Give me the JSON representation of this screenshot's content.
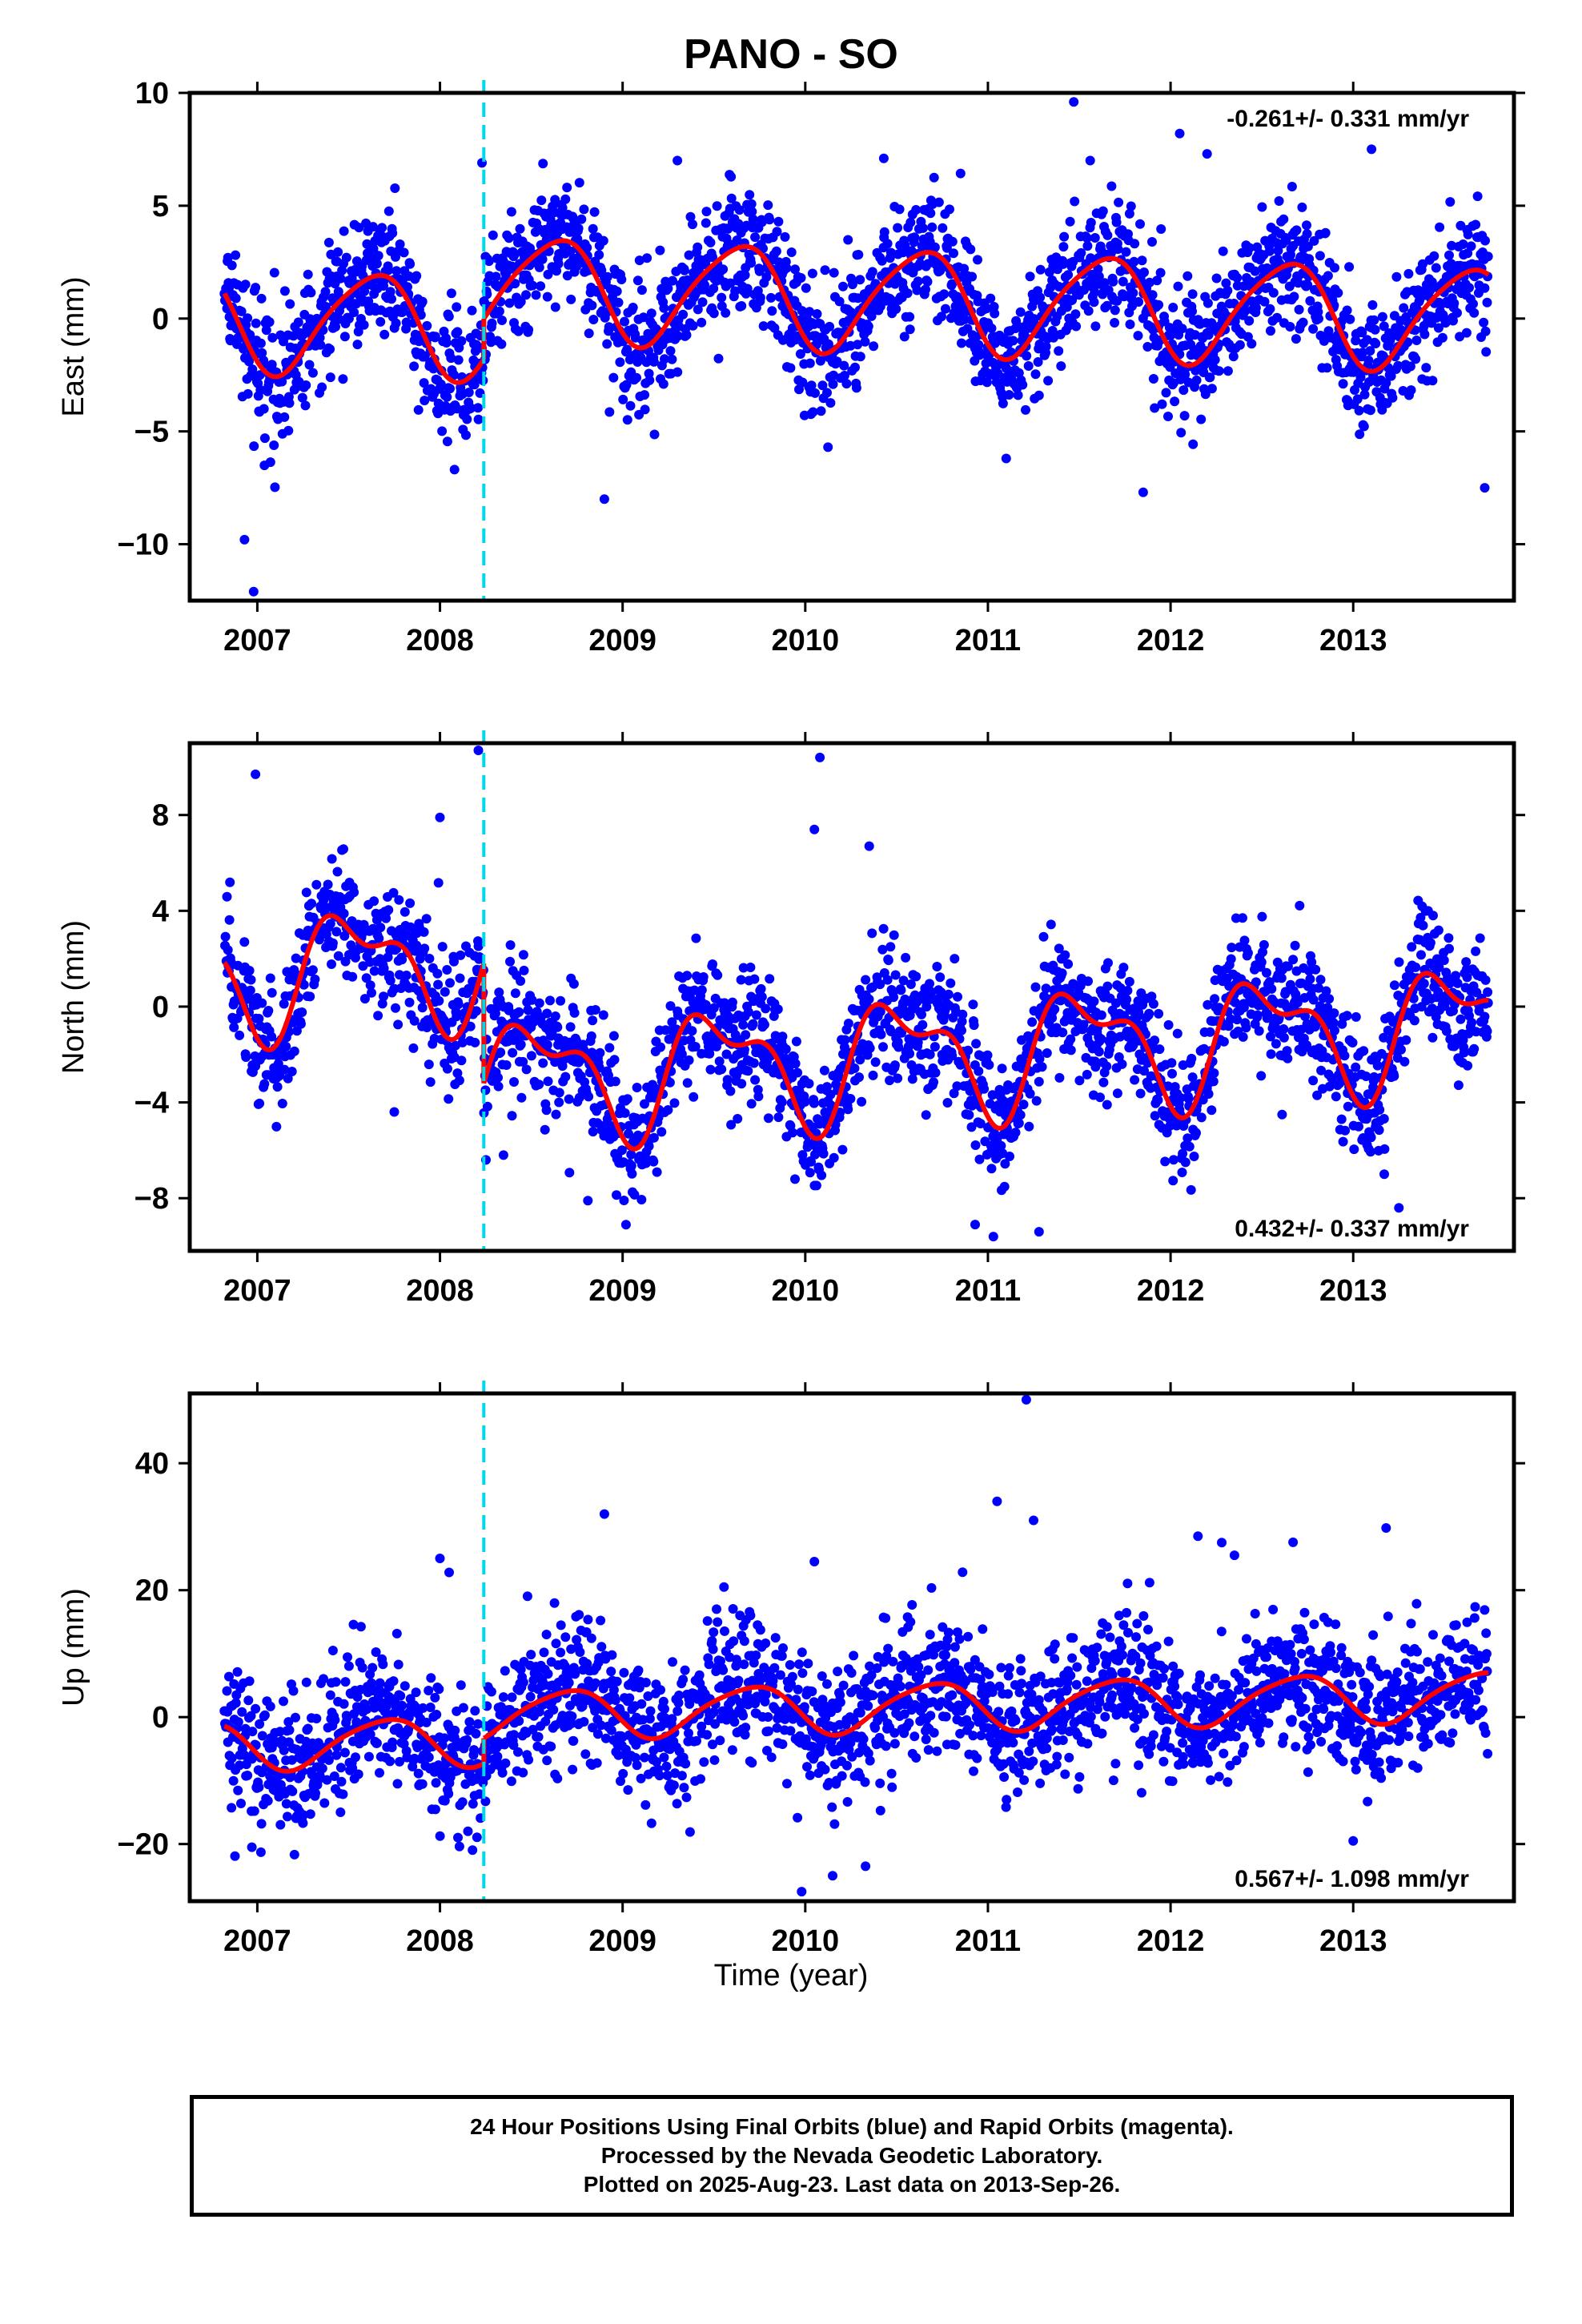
{
  "title": "PANO - SO",
  "xlabel": "Time (year)",
  "colors": {
    "points": "#0000ff",
    "fit": "#ff0000",
    "offset_line": "#00d8e8"
  },
  "chart_data": [
    {
      "type": "scatter",
      "name": "east",
      "ylabel": "East (mm)",
      "rate": "-0.261+/- 0.331 mm/yr",
      "rate_position": "top-right",
      "xlim": [
        2006.63,
        2013.88
      ],
      "ylim": [
        -12.5,
        10
      ],
      "xticks": [
        2007,
        2008,
        2009,
        2010,
        2011,
        2012,
        2013
      ],
      "yticks": [
        -10,
        -5,
        0,
        5,
        10
      ],
      "ytick_labels": [
        "−10",
        "−5",
        "0",
        "5",
        "10"
      ],
      "offset_epoch": 2008.24,
      "data_start": 2006.82,
      "data_end": 2013.74,
      "fit": {
        "mean": 0.0,
        "slope": -0.261,
        "t0": 2010.28,
        "amp1": 2.25,
        "amp2": 0.35,
        "phase1": -0.6,
        "phase2": 1.3,
        "offset": 1.8,
        "offset_epoch": 2008.24,
        "scatter": 1.4
      },
      "outliers": [
        [
          2006.93,
          -9.8
        ],
        [
          2006.98,
          -12.1
        ],
        [
          2008.23,
          6.9
        ],
        [
          2011.47,
          9.6
        ],
        [
          2011.56,
          7.0
        ],
        [
          2012.05,
          8.2
        ],
        [
          2012.2,
          7.3
        ],
        [
          2013.1,
          7.5
        ],
        [
          2010.43,
          7.1
        ],
        [
          2009.3,
          7.0
        ],
        [
          2008.9,
          -8.0
        ],
        [
          2013.72,
          -7.5
        ],
        [
          2011.1,
          -6.2
        ],
        [
          2011.85,
          -7.7
        ]
      ]
    },
    {
      "type": "scatter",
      "name": "north",
      "ylabel": "North (mm)",
      "rate": "0.432+/- 0.337 mm/yr",
      "rate_position": "bottom-right",
      "xlim": [
        2006.63,
        2013.88
      ],
      "ylim": [
        -10.2,
        11
      ],
      "xticks": [
        2007,
        2008,
        2009,
        2010,
        2011,
        2012,
        2013
      ],
      "yticks": [
        -8,
        -4,
        0,
        4,
        8
      ],
      "ytick_labels": [
        "−8",
        "−4",
        "0",
        "4",
        "8"
      ],
      "offset_epoch": 2008.24,
      "data_start": 2006.82,
      "data_end": 2013.74,
      "fit": {
        "mean": 0.3,
        "slope": 0.432,
        "t0": 2010.28,
        "amp1": 2.2,
        "amp2": 1.1,
        "phase1": 0.0,
        "phase2": 0.9,
        "offset": -5.0,
        "offset_epoch": 2008.24,
        "scatter": 1.3
      },
      "outliers": [
        [
          2008.21,
          10.7
        ],
        [
          2010.08,
          10.4
        ],
        [
          2010.05,
          7.4
        ],
        [
          2010.35,
          6.7
        ],
        [
          2006.99,
          9.7
        ],
        [
          2008.0,
          7.9
        ],
        [
          2010.93,
          -9.1
        ],
        [
          2011.03,
          -9.6
        ],
        [
          2011.28,
          -9.4
        ],
        [
          2013.17,
          -7.0
        ],
        [
          2013.25,
          -8.4
        ],
        [
          2008.81,
          -8.1
        ],
        [
          2007.75,
          -4.4
        ]
      ]
    },
    {
      "type": "scatter",
      "name": "up",
      "ylabel": "Up (mm)",
      "rate": "0.567+/- 1.098 mm/yr",
      "rate_position": "bottom-right",
      "xlim": [
        2006.63,
        2013.88
      ],
      "ylim": [
        -29,
        51
      ],
      "xticks": [
        2007,
        2008,
        2009,
        2010,
        2011,
        2012,
        2013
      ],
      "yticks": [
        -20,
        0,
        20,
        40
      ],
      "ytick_labels": [
        "−20",
        "0",
        "20",
        "40"
      ],
      "offset_epoch": 2008.24,
      "data_start": 2006.82,
      "data_end": 2013.74,
      "fit": {
        "mean": -0.5,
        "slope": 0.567,
        "t0": 2010.28,
        "amp1": 3.8,
        "amp2": 0.6,
        "phase1": -1.0,
        "phase2": 0.4,
        "offset": 4.0,
        "offset_epoch": 2008.24,
        "scatter": 5.5
      },
      "outliers": [
        [
          2011.21,
          50.0
        ],
        [
          2008.0,
          25.0
        ],
        [
          2008.05,
          22.8
        ],
        [
          2008.9,
          32.0
        ],
        [
          2011.05,
          34.0
        ],
        [
          2011.25,
          31.0
        ],
        [
          2012.15,
          28.5
        ],
        [
          2012.28,
          27.5
        ],
        [
          2013.18,
          29.8
        ],
        [
          2010.05,
          24.5
        ],
        [
          2010.15,
          -25.0
        ],
        [
          2010.33,
          -23.5
        ],
        [
          2009.98,
          -27.5
        ],
        [
          2013.0,
          -19.5
        ],
        [
          2006.97,
          -20.5
        ],
        [
          2012.35,
          25.5
        ]
      ]
    }
  ],
  "footer": {
    "line1": "24 Hour Positions Using Final Orbits (blue) and Rapid Orbits (magenta).",
    "line2": "Processed by the Nevada Geodetic Laboratory.",
    "line3": "Plotted on 2025-Aug-23. Last data on 2013-Sep-26."
  }
}
